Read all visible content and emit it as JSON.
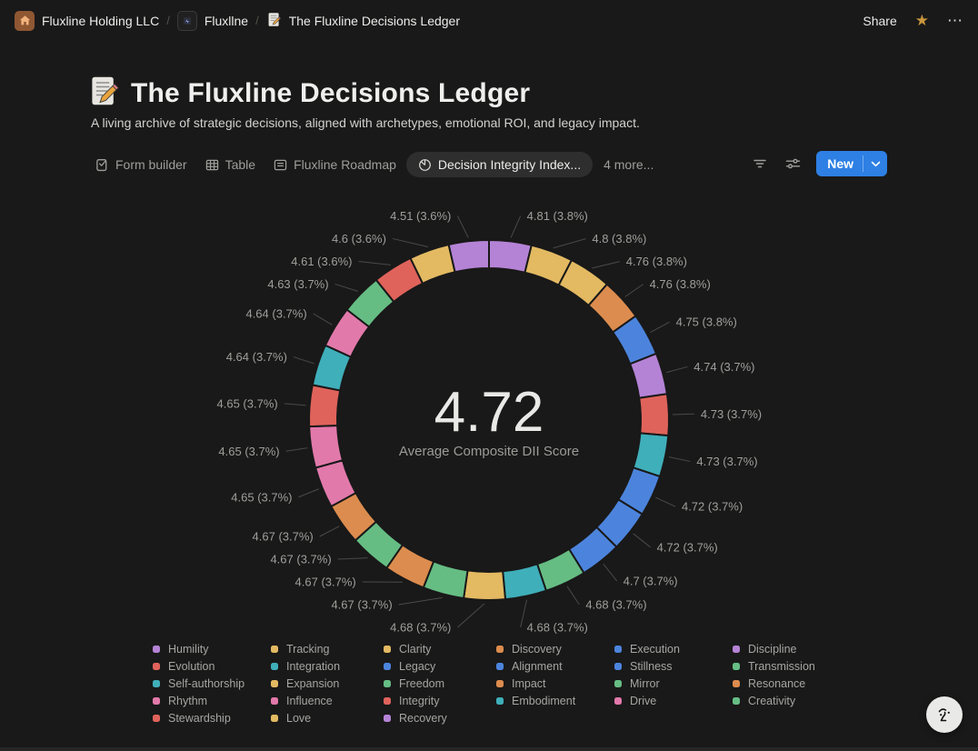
{
  "topbar": {
    "breadcrumbs": [
      {
        "label": "Fluxline Holding LLC",
        "icon": "home-icon"
      },
      {
        "label": "Fluxllne",
        "icon": "workspace-icon"
      },
      {
        "label": "The Fluxline Decisions Ledger",
        "icon": "memo-icon"
      }
    ],
    "separator": "/",
    "share_label": "Share"
  },
  "icons": {
    "star": "★",
    "ellipsis": "⋯"
  },
  "page": {
    "title": "The Fluxline Decisions Ledger",
    "description": "A living archive of strategic decisions, aligned with archetypes, emotional ROI, and legacy impact."
  },
  "toolbar": {
    "tabs": [
      {
        "label": "Form builder",
        "icon": "form-icon",
        "active": false
      },
      {
        "label": "Table",
        "icon": "table-icon",
        "active": false
      },
      {
        "label": "Fluxline Roadmap",
        "icon": "list-icon",
        "active": false
      },
      {
        "label": "Decision Integrity Index...",
        "icon": "pie-chart-icon",
        "active": true
      }
    ],
    "more_tabs_label": "4 more...",
    "new_button_label": "New",
    "accent_color": "#2e80e4"
  },
  "chart_data": {
    "type": "pie",
    "title": "Decision Integrity Index",
    "center_value": "4.72",
    "center_label": "Average Composite DII Score",
    "legend_position": "bottom",
    "label_format": "value (pct%)",
    "segments": [
      {
        "value": "4.81",
        "pct": "3.8",
        "color": "#b583d6"
      },
      {
        "value": "4.8",
        "pct": "3.8",
        "color": "#e3ba62"
      },
      {
        "value": "4.76",
        "pct": "3.8",
        "color": "#e3ba62"
      },
      {
        "value": "4.76",
        "pct": "3.8",
        "color": "#dc8c4e"
      },
      {
        "value": "4.75",
        "pct": "3.8",
        "color": "#4c84dd"
      },
      {
        "value": "4.74",
        "pct": "3.7",
        "color": "#b583d6"
      },
      {
        "value": "4.73",
        "pct": "3.7",
        "color": "#e0635b"
      },
      {
        "value": "4.73",
        "pct": "3.7",
        "color": "#3fafba"
      },
      {
        "value": "4.72",
        "pct": "3.7",
        "color": "#4c84dd"
      },
      {
        "value": "4.72",
        "pct": "3.7",
        "color": "#4c84dd"
      },
      {
        "value": "4.7",
        "pct": "3.7",
        "color": "#4c84dd"
      },
      {
        "value": "4.68",
        "pct": "3.7",
        "color": "#66bd84"
      },
      {
        "value": "4.68",
        "pct": "3.7",
        "color": "#3fafba"
      },
      {
        "value": "4.68",
        "pct": "3.7",
        "color": "#e3ba62"
      },
      {
        "value": "4.67",
        "pct": "3.7",
        "color": "#66bd84"
      },
      {
        "value": "4.67",
        "pct": "3.7",
        "color": "#dc8c4e"
      },
      {
        "value": "4.67",
        "pct": "3.7",
        "color": "#66bd84"
      },
      {
        "value": "4.67",
        "pct": "3.7",
        "color": "#dc8c4e"
      },
      {
        "value": "4.65",
        "pct": "3.7",
        "color": "#e279ab"
      },
      {
        "value": "4.65",
        "pct": "3.7",
        "color": "#e279ab"
      },
      {
        "value": "4.65",
        "pct": "3.7",
        "color": "#e0635b"
      },
      {
        "value": "4.64",
        "pct": "3.7",
        "color": "#3fafba"
      },
      {
        "value": "4.64",
        "pct": "3.7",
        "color": "#e279ab"
      },
      {
        "value": "4.63",
        "pct": "3.7",
        "color": "#66bd84"
      },
      {
        "value": "4.61",
        "pct": "3.6",
        "color": "#e0635b"
      },
      {
        "value": "4.6",
        "pct": "3.6",
        "color": "#e3ba62"
      },
      {
        "value": "4.51",
        "pct": "3.6",
        "color": "#b583d6"
      }
    ],
    "legend_columns": [
      [
        {
          "name": "Humility",
          "color": "#b583d6"
        },
        {
          "name": "Evolution",
          "color": "#e0635b"
        },
        {
          "name": "Self-authorship",
          "color": "#3fafba"
        },
        {
          "name": "Rhythm",
          "color": "#e279ab"
        },
        {
          "name": "Stewardship",
          "color": "#e0635b"
        }
      ],
      [
        {
          "name": "Tracking",
          "color": "#e3ba62"
        },
        {
          "name": "Integration",
          "color": "#3fafba"
        },
        {
          "name": "Expansion",
          "color": "#e3ba62"
        },
        {
          "name": "Influence",
          "color": "#e279ab"
        },
        {
          "name": "Love",
          "color": "#e3ba62"
        }
      ],
      [
        {
          "name": "Clarity",
          "color": "#e3ba62"
        },
        {
          "name": "Legacy",
          "color": "#4c84dd"
        },
        {
          "name": "Freedom",
          "color": "#66bd84"
        },
        {
          "name": "Integrity",
          "color": "#e0635b"
        },
        {
          "name": "Recovery",
          "color": "#b583d6"
        }
      ],
      [
        {
          "name": "Discovery",
          "color": "#dc8c4e"
        },
        {
          "name": "Alignment",
          "color": "#4c84dd"
        },
        {
          "name": "Impact",
          "color": "#dc8c4e"
        },
        {
          "name": "Embodiment",
          "color": "#3fafba"
        }
      ],
      [
        {
          "name": "Execution",
          "color": "#4c84dd"
        },
        {
          "name": "Stillness",
          "color": "#4c84dd"
        },
        {
          "name": "Mirror",
          "color": "#66bd84"
        },
        {
          "name": "Drive",
          "color": "#e279ab"
        }
      ],
      [
        {
          "name": "Discipline",
          "color": "#b583d6"
        },
        {
          "name": "Transmission",
          "color": "#66bd84"
        },
        {
          "name": "Resonance",
          "color": "#dc8c4e"
        },
        {
          "name": "Creativity",
          "color": "#66bd84"
        }
      ]
    ]
  }
}
